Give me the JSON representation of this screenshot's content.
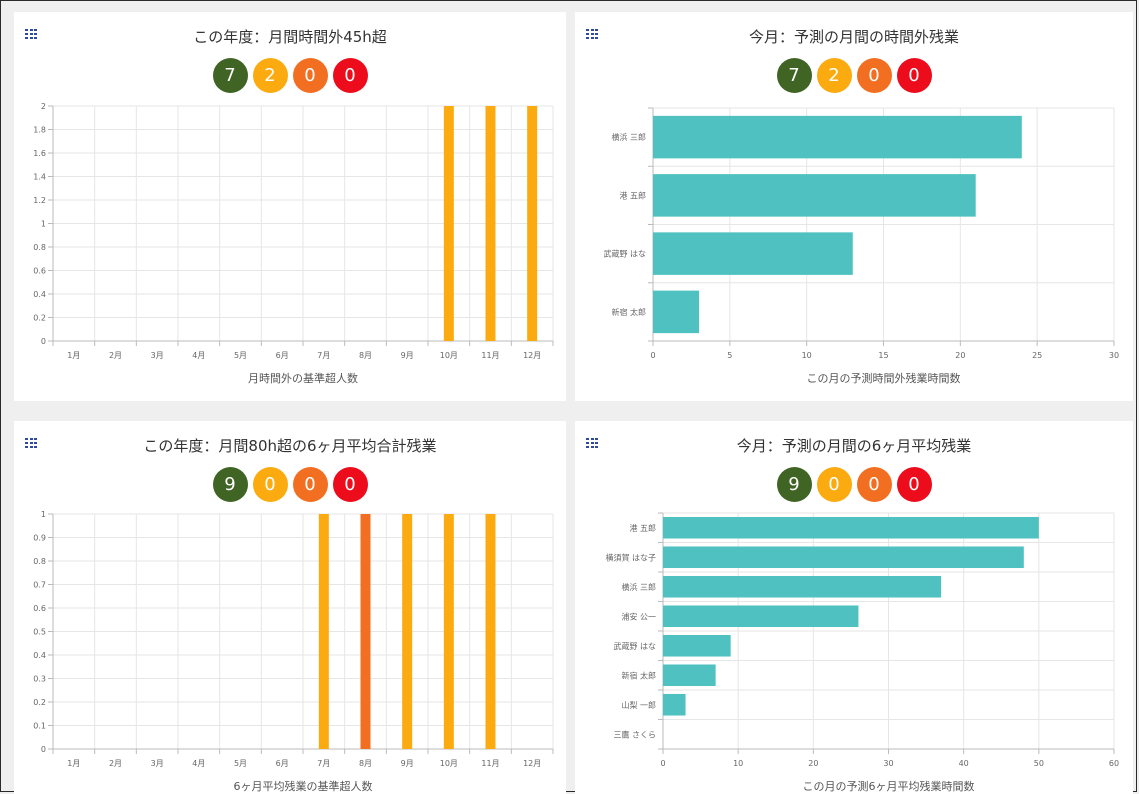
{
  "colors": {
    "green": "#3f6424",
    "yellow": "#fbab10",
    "orange": "#f26f21",
    "red": "#ed0c1b",
    "teal": "#4fc1c1"
  },
  "panels": {
    "p1": {
      "title": "この年度：月間時間外45h超",
      "menu_icon": "grid-menu-icon",
      "badges": [
        "7",
        "2",
        "0",
        "0"
      ]
    },
    "p2": {
      "title": "今月：予測の月間の時間外残業",
      "menu_icon": "grid-menu-icon",
      "badges": [
        "7",
        "2",
        "0",
        "0"
      ]
    },
    "p3": {
      "title": "この年度：月間80h超の6ヶ月平均合計残業",
      "menu_icon": "grid-menu-icon",
      "badges": [
        "9",
        "0",
        "0",
        "0"
      ]
    },
    "p4": {
      "title": "今月：予測の月間の6ヶ月平均残業",
      "menu_icon": "grid-menu-icon",
      "badges": [
        "9",
        "0",
        "0",
        "0"
      ]
    }
  },
  "chart_data": [
    {
      "type": "bar",
      "orientation": "vertical",
      "categories": [
        "1月",
        "2月",
        "3月",
        "4月",
        "5月",
        "6月",
        "7月",
        "8月",
        "9月",
        "10月",
        "11月",
        "12月"
      ],
      "series": [
        {
          "color": "yellow",
          "values": [
            0,
            0,
            0,
            0,
            0,
            0,
            0,
            0,
            0,
            2,
            2,
            2
          ]
        }
      ],
      "xlabel": "月時間外の基準超人数",
      "ylim": [
        0,
        2
      ],
      "yticks": [
        "0",
        "0.2",
        "0.4",
        "0.6",
        "0.8",
        "1",
        "1.2",
        "1.4",
        "1.6",
        "1.8",
        "2"
      ],
      "grid": true
    },
    {
      "type": "bar",
      "orientation": "horizontal",
      "categories": [
        "横浜 三郎",
        "港 五郎",
        "武蔵野 はな",
        "新宿 太郎"
      ],
      "values": [
        24,
        21,
        13,
        3
      ],
      "color": "teal",
      "xlabel": "この月の予測時間外残業時間数",
      "xlim": [
        0,
        30
      ],
      "xticks": [
        "0",
        "5",
        "10",
        "15",
        "20",
        "25",
        "30"
      ],
      "grid": true
    },
    {
      "type": "bar",
      "orientation": "vertical",
      "categories": [
        "1月",
        "2月",
        "3月",
        "4月",
        "5月",
        "6月",
        "7月",
        "8月",
        "9月",
        "10月",
        "11月",
        "12月"
      ],
      "series": [
        {
          "color": "yellow",
          "values": [
            0,
            0,
            0,
            0,
            0,
            0,
            1,
            0,
            1,
            1,
            1,
            0
          ]
        },
        {
          "color": "orange",
          "values": [
            0,
            0,
            0,
            0,
            0,
            0,
            0,
            1,
            0,
            0,
            0,
            0
          ]
        }
      ],
      "xlabel": "6ヶ月平均残業の基準超人数",
      "ylim": [
        0,
        1
      ],
      "yticks": [
        "0",
        "0.1",
        "0.2",
        "0.3",
        "0.4",
        "0.5",
        "0.6",
        "0.7",
        "0.8",
        "0.9",
        "1"
      ],
      "grid": true
    },
    {
      "type": "bar",
      "orientation": "horizontal",
      "categories": [
        "港 五郎",
        "横須賀 はな子",
        "横浜 三郎",
        "浦安 公一",
        "武蔵野 はな",
        "新宿 太郎",
        "山梨 一郎",
        "三鷹 さくら"
      ],
      "values": [
        50,
        48,
        37,
        26,
        9,
        7,
        3,
        0
      ],
      "color": "teal",
      "xlabel": "この月の予測6ヶ月平均残業時間数",
      "xlim": [
        0,
        60
      ],
      "xticks": [
        "0",
        "10",
        "20",
        "30",
        "40",
        "50",
        "60"
      ],
      "grid": true
    }
  ]
}
